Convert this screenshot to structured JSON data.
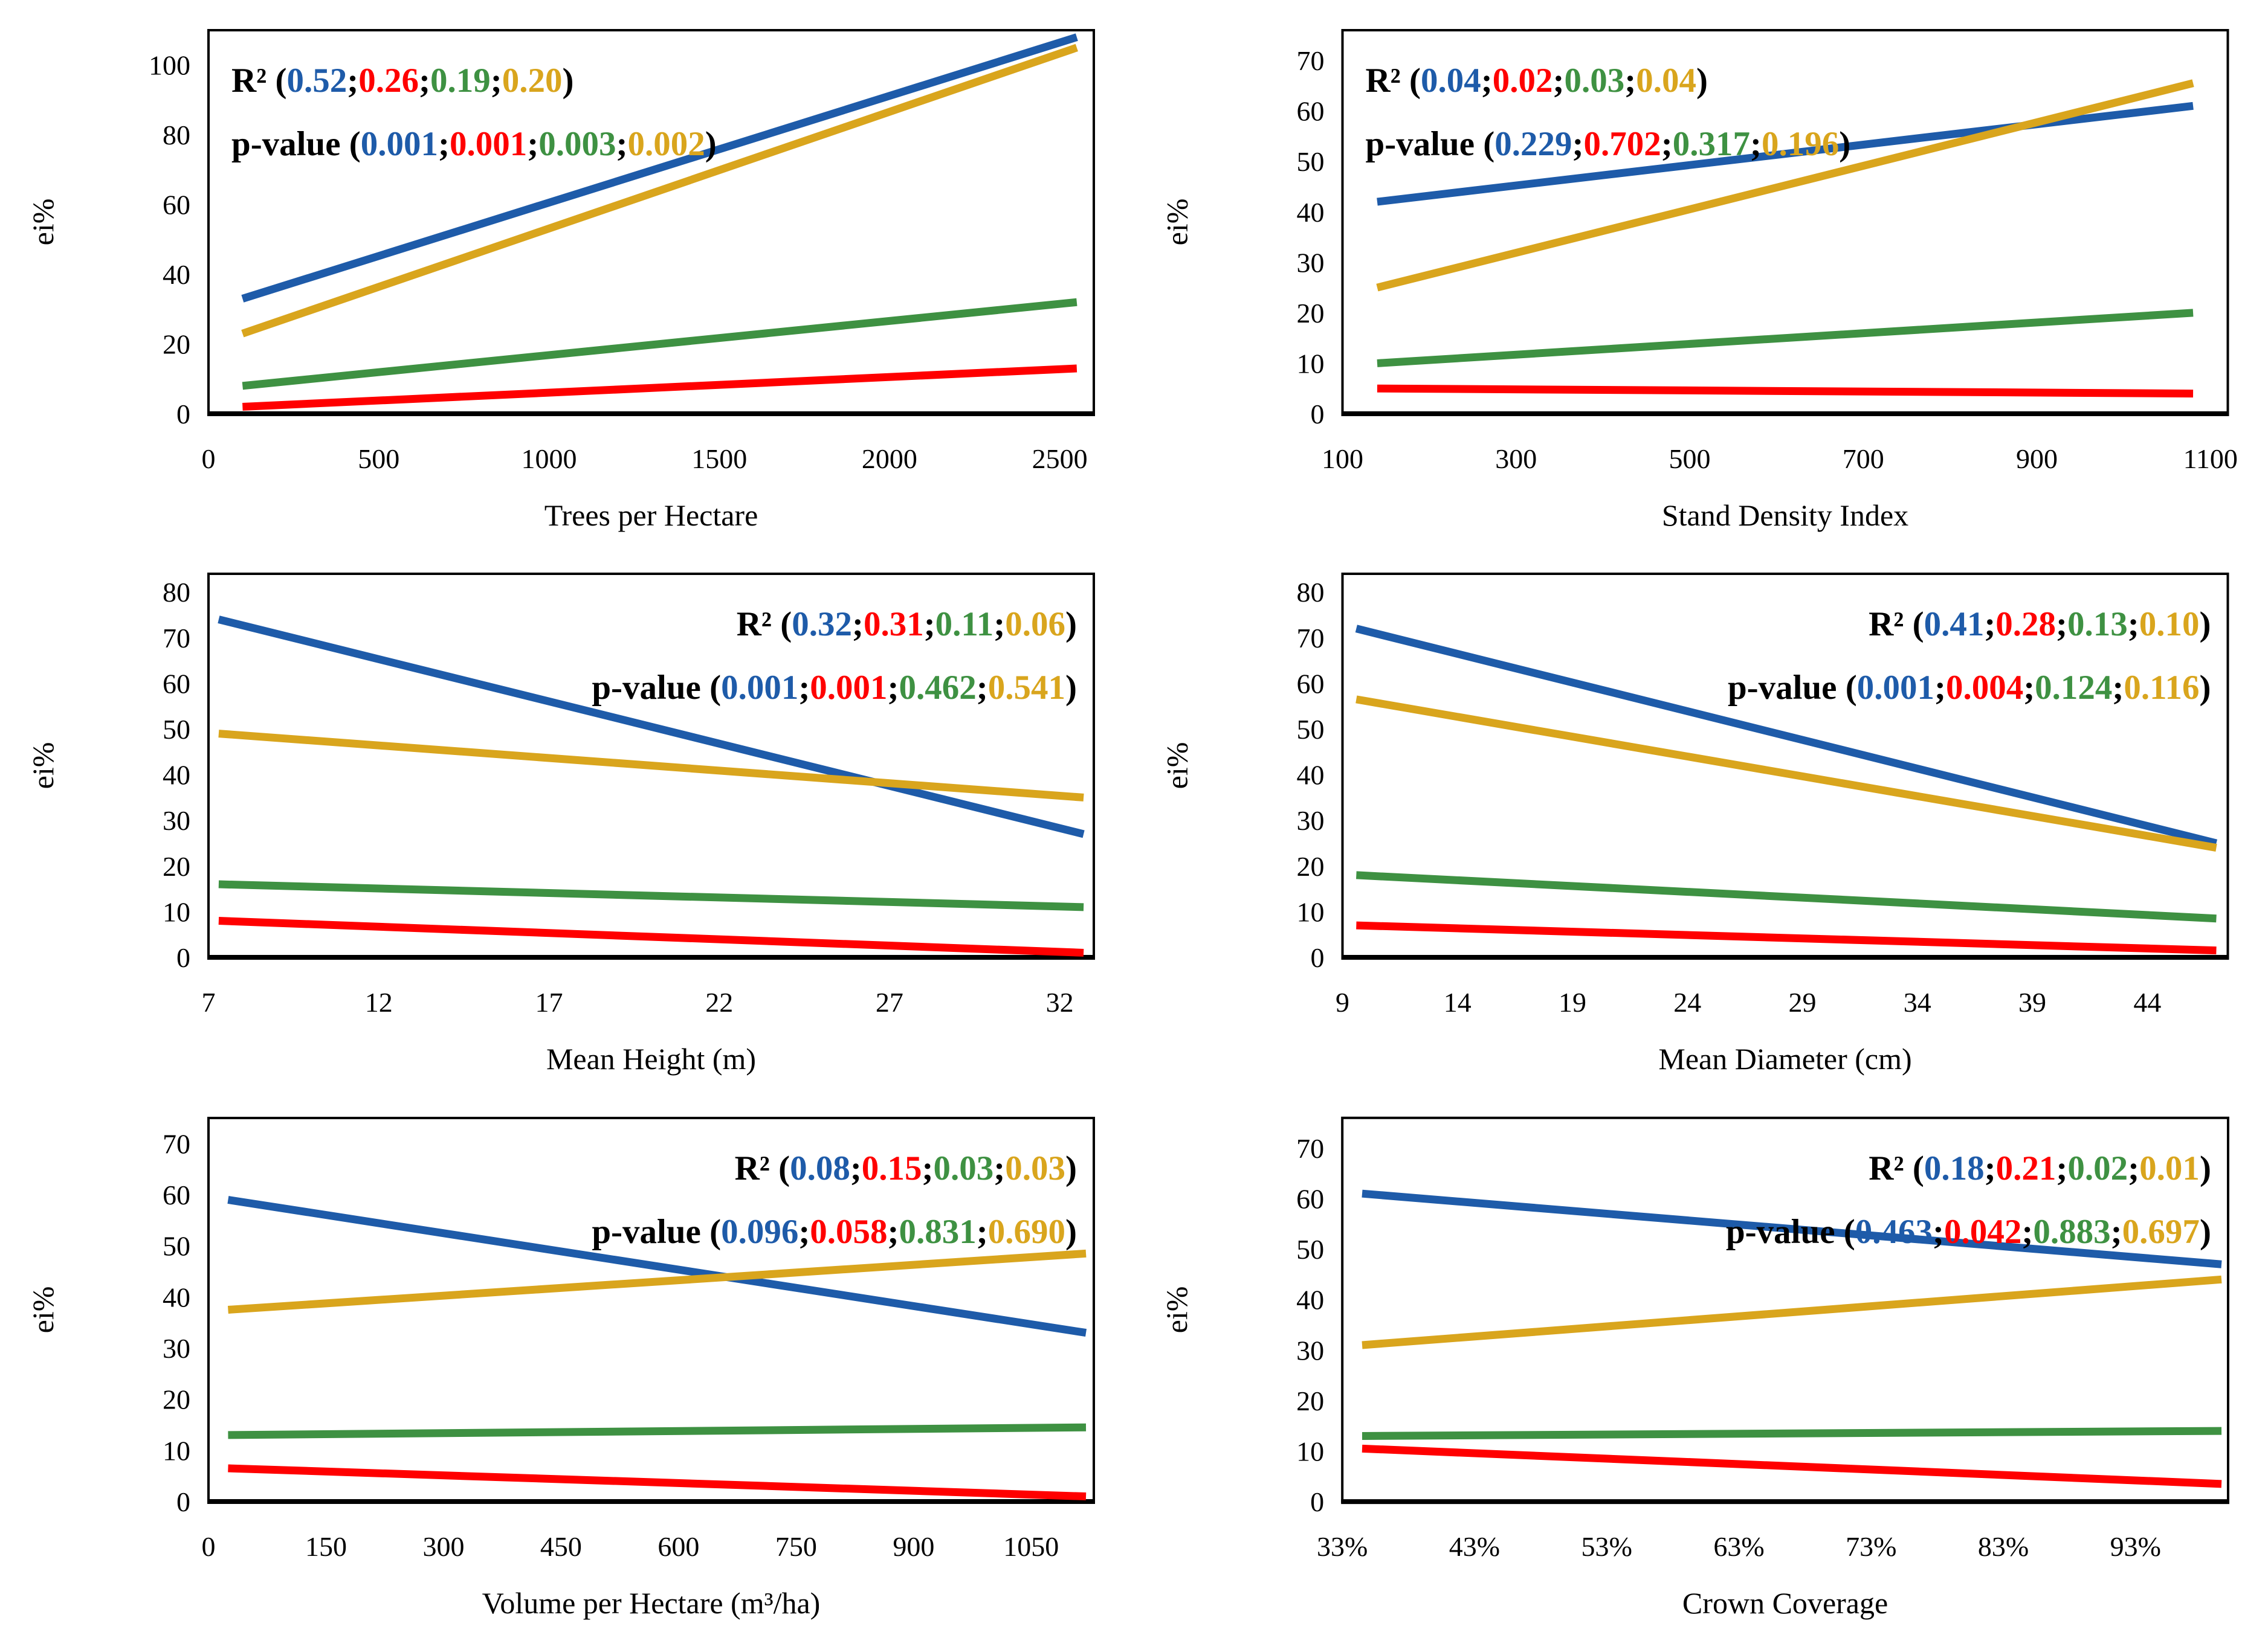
{
  "palette": {
    "blue": "#1E5BA9",
    "red": "#FF0000",
    "green": "#3E9142",
    "orange": "#D9A51D",
    "axis": "#000000"
  },
  "series_order": [
    "blue",
    "red",
    "green",
    "orange"
  ],
  "annotation": {
    "r2_label": "R²",
    "p_label": "p-value"
  },
  "y_axis_label": "ei%",
  "chart_data": [
    {
      "type": "line",
      "xlabel": "Trees per Hectare",
      "ylabel": "ei%",
      "x_axis_range": [
        0,
        2600
      ],
      "x_tick_values": [
        0,
        500,
        1000,
        1500,
        2000,
        2500
      ],
      "x_tick_labels": [
        "0",
        "500",
        "1000",
        "1500",
        "2000",
        "2500"
      ],
      "y_ticks": [
        0,
        20,
        40,
        60,
        80,
        100
      ],
      "y_plot_max": 110,
      "annotation_side": "left",
      "r2": [
        "0.52",
        "0.26",
        "0.19",
        "0.20"
      ],
      "p_value": [
        "0.001",
        "0.001",
        "0.003",
        "0.002"
      ],
      "series": [
        {
          "color": "blue",
          "x0": 100,
          "y0": 33,
          "x1": 2550,
          "y1": 108
        },
        {
          "color": "red",
          "x0": 100,
          "y0": 2,
          "x1": 2550,
          "y1": 13
        },
        {
          "color": "green",
          "x0": 100,
          "y0": 8,
          "x1": 2550,
          "y1": 32
        },
        {
          "color": "orange",
          "x0": 100,
          "y0": 23,
          "x1": 2550,
          "y1": 105
        }
      ]
    },
    {
      "type": "line",
      "xlabel": "Stand Density Index",
      "ylabel": "ei%",
      "x_axis_range": [
        100,
        1120
      ],
      "x_tick_values": [
        100,
        300,
        500,
        700,
        900,
        1100
      ],
      "x_tick_labels": [
        "100",
        "300",
        "500",
        "700",
        "900",
        "1100"
      ],
      "y_ticks": [
        0,
        10,
        20,
        30,
        40,
        50,
        60,
        70
      ],
      "y_plot_max": 76,
      "annotation_side": "left",
      "r2": [
        "0.04",
        "0.02",
        "0.03",
        "0.04"
      ],
      "p_value": [
        "0.229",
        "0.702",
        "0.317",
        "0.196"
      ],
      "series": [
        {
          "color": "blue",
          "x0": 140,
          "y0": 42,
          "x1": 1080,
          "y1": 61
        },
        {
          "color": "red",
          "x0": 140,
          "y0": 5,
          "x1": 1080,
          "y1": 4
        },
        {
          "color": "green",
          "x0": 140,
          "y0": 10,
          "x1": 1080,
          "y1": 20
        },
        {
          "color": "orange",
          "x0": 140,
          "y0": 25,
          "x1": 1080,
          "y1": 65.5
        }
      ]
    },
    {
      "type": "line",
      "xlabel": "Mean Height (m)",
      "ylabel": "ei%",
      "x_axis_range": [
        7,
        33
      ],
      "x_tick_values": [
        7,
        12,
        17,
        22,
        27,
        32
      ],
      "x_tick_labels": [
        "7",
        "12",
        "17",
        "22",
        "27",
        "32"
      ],
      "y_ticks": [
        0,
        10,
        20,
        30,
        40,
        50,
        60,
        70,
        80
      ],
      "y_plot_max": 84,
      "annotation_side": "right",
      "r2": [
        "0.32",
        "0.31",
        "0.11",
        "0.06"
      ],
      "p_value": [
        "0.001",
        "0.001",
        "0.462",
        "0.541"
      ],
      "series": [
        {
          "color": "blue",
          "x0": 7.3,
          "y0": 74,
          "x1": 32.7,
          "y1": 27
        },
        {
          "color": "red",
          "x0": 7.3,
          "y0": 8,
          "x1": 32.7,
          "y1": 1
        },
        {
          "color": "green",
          "x0": 7.3,
          "y0": 16,
          "x1": 32.7,
          "y1": 11
        },
        {
          "color": "orange",
          "x0": 7.3,
          "y0": 49,
          "x1": 32.7,
          "y1": 35
        }
      ]
    },
    {
      "type": "line",
      "xlabel": "Mean Diameter (cm)",
      "ylabel": "ei%",
      "x_axis_range": [
        9,
        47.5
      ],
      "x_tick_values": [
        9,
        14,
        19,
        24,
        29,
        34,
        39,
        44
      ],
      "x_tick_labels": [
        "9",
        "14",
        "19",
        "24",
        "29",
        "34",
        "39",
        "44"
      ],
      "y_ticks": [
        0,
        10,
        20,
        30,
        40,
        50,
        60,
        70,
        80
      ],
      "y_plot_max": 84,
      "annotation_side": "right",
      "r2": [
        "0.41",
        "0.28",
        "0.13",
        "0.10"
      ],
      "p_value": [
        "0.001",
        "0.004",
        "0.124",
        "0.116"
      ],
      "series": [
        {
          "color": "blue",
          "x0": 9.6,
          "y0": 72,
          "x1": 47,
          "y1": 25
        },
        {
          "color": "red",
          "x0": 9.6,
          "y0": 7,
          "x1": 47,
          "y1": 1.5
        },
        {
          "color": "green",
          "x0": 9.6,
          "y0": 18,
          "x1": 47,
          "y1": 8.5
        },
        {
          "color": "orange",
          "x0": 9.6,
          "y0": 56.5,
          "x1": 47,
          "y1": 24
        }
      ]
    },
    {
      "type": "line",
      "xlabel": "Volume per Hectare (m³/ha)",
      "ylabel": "ei%",
      "x_axis_range": [
        0,
        1130
      ],
      "x_tick_values": [
        0,
        150,
        300,
        450,
        600,
        750,
        900,
        1050
      ],
      "x_tick_labels": [
        "0",
        "150",
        "300",
        "450",
        "600",
        "750",
        "900",
        "1050"
      ],
      "y_ticks": [
        0,
        10,
        20,
        30,
        40,
        50,
        60,
        70
      ],
      "y_plot_max": 75,
      "annotation_side": "right",
      "r2": [
        "0.08",
        "0.15",
        "0.03",
        "0.03"
      ],
      "p_value": [
        "0.096",
        "0.058",
        "0.831",
        "0.690"
      ],
      "series": [
        {
          "color": "blue",
          "x0": 25,
          "y0": 59,
          "x1": 1120,
          "y1": 33
        },
        {
          "color": "red",
          "x0": 25,
          "y0": 6.5,
          "x1": 1120,
          "y1": 1
        },
        {
          "color": "green",
          "x0": 25,
          "y0": 13,
          "x1": 1120,
          "y1": 14.5
        },
        {
          "color": "orange",
          "x0": 25,
          "y0": 37.5,
          "x1": 1120,
          "y1": 48.5
        }
      ]
    },
    {
      "type": "line",
      "xlabel": "Crown Coverage",
      "ylabel": "ei%",
      "x_axis_range": [
        33,
        100
      ],
      "x_tick_values": [
        33,
        43,
        53,
        63,
        73,
        83,
        93
      ],
      "x_tick_labels": [
        "33%",
        "43%",
        "53%",
        "63%",
        "73%",
        "83%",
        "93%"
      ],
      "y_ticks": [
        0,
        10,
        20,
        30,
        40,
        50,
        60,
        70
      ],
      "y_plot_max": 76,
      "annotation_side": "right",
      "r2": [
        "0.18",
        "0.21",
        "0.02",
        "0.01"
      ],
      "p_value": [
        "0.463",
        "0.042",
        "0.883",
        "0.697"
      ],
      "series": [
        {
          "color": "blue",
          "x0": 34.5,
          "y0": 61,
          "x1": 99.5,
          "y1": 47
        },
        {
          "color": "red",
          "x0": 34.5,
          "y0": 10.5,
          "x1": 99.5,
          "y1": 3.5
        },
        {
          "color": "green",
          "x0": 34.5,
          "y0": 13,
          "x1": 99.5,
          "y1": 14
        },
        {
          "color": "orange",
          "x0": 34.5,
          "y0": 31,
          "x1": 99.5,
          "y1": 44
        }
      ]
    }
  ]
}
